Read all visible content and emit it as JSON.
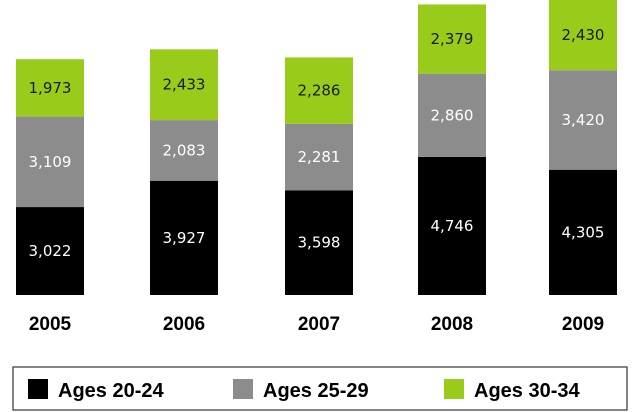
{
  "chart_data": {
    "type": "bar",
    "stacked": true,
    "categories": [
      "2005",
      "2006",
      "2007",
      "2008",
      "2009"
    ],
    "series": [
      {
        "name": "Ages 20-24",
        "color": "#000000",
        "label_color": "#ffffff",
        "values": [
          3022,
          3927,
          3598,
          4746,
          4305
        ],
        "labels": [
          "3,022",
          "3,927",
          "3,598",
          "4,746",
          "4,305"
        ]
      },
      {
        "name": "Ages 25-29",
        "color": "#8c8c8c",
        "label_color": "#ffffff",
        "values": [
          3109,
          2083,
          2281,
          2860,
          3420
        ],
        "labels": [
          "3,109",
          "2,083",
          "2,281",
          "2,860",
          "3,420"
        ]
      },
      {
        "name": "Ages 30-34",
        "color": "#99cc1a",
        "label_color": "#1a1a1a",
        "values": [
          1973,
          2433,
          2286,
          2379,
          2430
        ],
        "labels": [
          "1,973",
          "2,433",
          "2,286",
          "2,379",
          "2,430"
        ]
      }
    ],
    "title": "",
    "xlabel": "",
    "ylabel": "",
    "grid": false,
    "legend_position": "bottom"
  }
}
